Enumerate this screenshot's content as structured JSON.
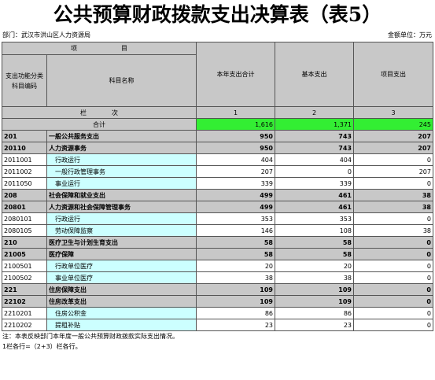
{
  "title": "公共预算财政拨款支出决算表（表5）",
  "department": "部门：武汉市洪山区人力资源局",
  "unit": "金额单位：万元",
  "header": {
    "item": "项　　　　　　　目",
    "code_label": "支出功能分类科目编码",
    "name_label": "科目名称",
    "col1": "本年支出合计",
    "col2": "基本支出",
    "col3": "项目支出",
    "column_label": "栏　　　　次",
    "n1": "1",
    "n2": "2",
    "n3": "3"
  },
  "total": {
    "label": "合计",
    "c1": "1,616",
    "c2": "1,371",
    "c3": "245"
  },
  "rows": [
    {
      "code": "201",
      "name": "一般公共服务支出",
      "c1": "950",
      "c2": "743",
      "c3": "207",
      "level": "bold"
    },
    {
      "code": "20110",
      "name": "人力资源事务",
      "c1": "950",
      "c2": "743",
      "c3": "207",
      "level": "bold"
    },
    {
      "code": "2011001",
      "name": "行政运行",
      "c1": "404",
      "c2": "404",
      "c3": "0",
      "level": "norm"
    },
    {
      "code": "2011002",
      "name": "一般行政管理事务",
      "c1": "207",
      "c2": "0",
      "c3": "207",
      "level": "norm"
    },
    {
      "code": "2011050",
      "name": "事业运行",
      "c1": "339",
      "c2": "339",
      "c3": "0",
      "level": "norm"
    },
    {
      "code": "208",
      "name": "社会保障和就业支出",
      "c1": "499",
      "c2": "461",
      "c3": "38",
      "level": "bold"
    },
    {
      "code": "20801",
      "name": "人力资源和社会保障管理事务",
      "c1": "499",
      "c2": "461",
      "c3": "38",
      "level": "bold"
    },
    {
      "code": "2080101",
      "name": "行政运行",
      "c1": "353",
      "c2": "353",
      "c3": "0",
      "level": "norm"
    },
    {
      "code": "2080105",
      "name": "劳动保障监察",
      "c1": "146",
      "c2": "108",
      "c3": "38",
      "level": "norm"
    },
    {
      "code": "210",
      "name": "医疗卫生与计划生育支出",
      "c1": "58",
      "c2": "58",
      "c3": "0",
      "level": "bold"
    },
    {
      "code": "21005",
      "name": "医疗保障",
      "c1": "58",
      "c2": "58",
      "c3": "0",
      "level": "bold"
    },
    {
      "code": "2100501",
      "name": "行政单位医疗",
      "c1": "20",
      "c2": "20",
      "c3": "0",
      "level": "norm"
    },
    {
      "code": "2100502",
      "name": "事业单位医疗",
      "c1": "38",
      "c2": "38",
      "c3": "0",
      "level": "norm"
    },
    {
      "code": "221",
      "name": "住房保障支出",
      "c1": "109",
      "c2": "109",
      "c3": "0",
      "level": "bold"
    },
    {
      "code": "22102",
      "name": "住房改革支出",
      "c1": "109",
      "c2": "109",
      "c3": "0",
      "level": "bold"
    },
    {
      "code": "2210201",
      "name": "住房公积金",
      "c1": "86",
      "c2": "86",
      "c3": "0",
      "level": "norm"
    },
    {
      "code": "2210202",
      "name": "提租补贴",
      "c1": "23",
      "c2": "23",
      "c3": "0",
      "level": "norm"
    }
  ],
  "notes": {
    "line1": "注：本表反映部门本年度一般公共预算财政拨款实际支出情况。",
    "line2": "1栏各行=（2+3）栏各行。"
  }
}
